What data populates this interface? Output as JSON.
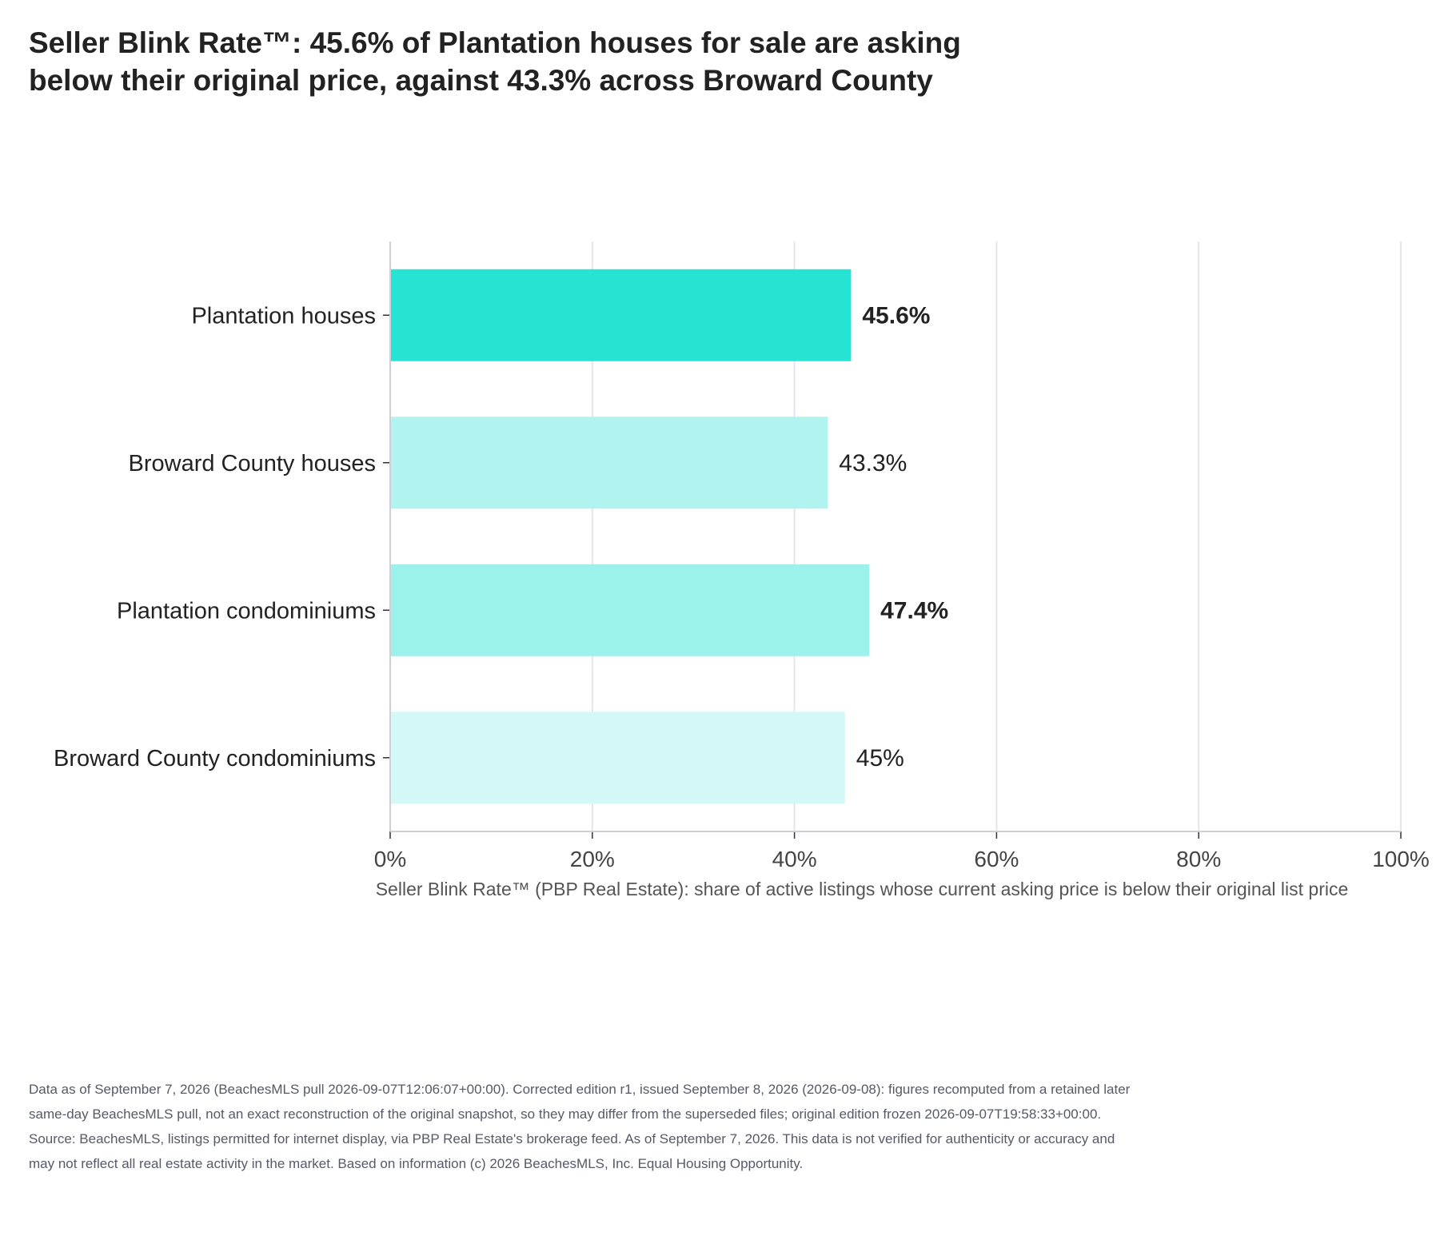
{
  "title": "Seller Blink Rate™: 45.6% of Plantation houses for sale are asking below their original price, against 43.3% across Broward County",
  "chart_data": {
    "type": "bar",
    "orientation": "horizontal",
    "categories": [
      "Plantation houses",
      "Broward County houses",
      "Plantation condominiums",
      "Broward County condominiums"
    ],
    "values": [
      45.6,
      43.3,
      47.4,
      45
    ],
    "value_labels": [
      "45.6%",
      "43.3%",
      "47.4%",
      "45%"
    ],
    "label_bold": [
      true,
      false,
      true,
      false
    ],
    "bar_colors": [
      "#26e4d4",
      "#b1f4ef",
      "#9cf1eb",
      "#d3f8f5"
    ],
    "xlabel": "Seller Blink Rate™ (PBP Real Estate): share of active listings whose current asking price is below their original list price",
    "xlim": [
      0,
      100
    ],
    "x_ticks": [
      0,
      20,
      40,
      60,
      80,
      100
    ],
    "x_tick_labels": [
      "0%",
      "20%",
      "40%",
      "60%",
      "80%",
      "100%"
    ],
    "grid": true,
    "legend": "none"
  },
  "colors": {
    "text": "#222222",
    "gridline": "#e4e4ee",
    "axis": "#cfcfdb",
    "footnote": "#555a66"
  },
  "footnotes": {
    "data_note": "Data as of September 7, 2026 (BeachesMLS pull 2026-09-07T12:06:07+00:00). Corrected edition r1, issued September 8, 2026 (2026-09-08): figures recomputed from a retained later same-day BeachesMLS pull, not an exact reconstruction of the original snapshot, so they may differ from the superseded files; original edition frozen 2026-09-07T19:58:33+00:00.",
    "source_note": "Source: BeachesMLS, listings permitted for internet display, via PBP Real Estate's brokerage feed. As of September 7, 2026. This data is not verified for authenticity or accuracy and may not reflect all real estate activity in the market. Based on information (c) 2026 BeachesMLS, Inc. Equal Housing Opportunity."
  }
}
